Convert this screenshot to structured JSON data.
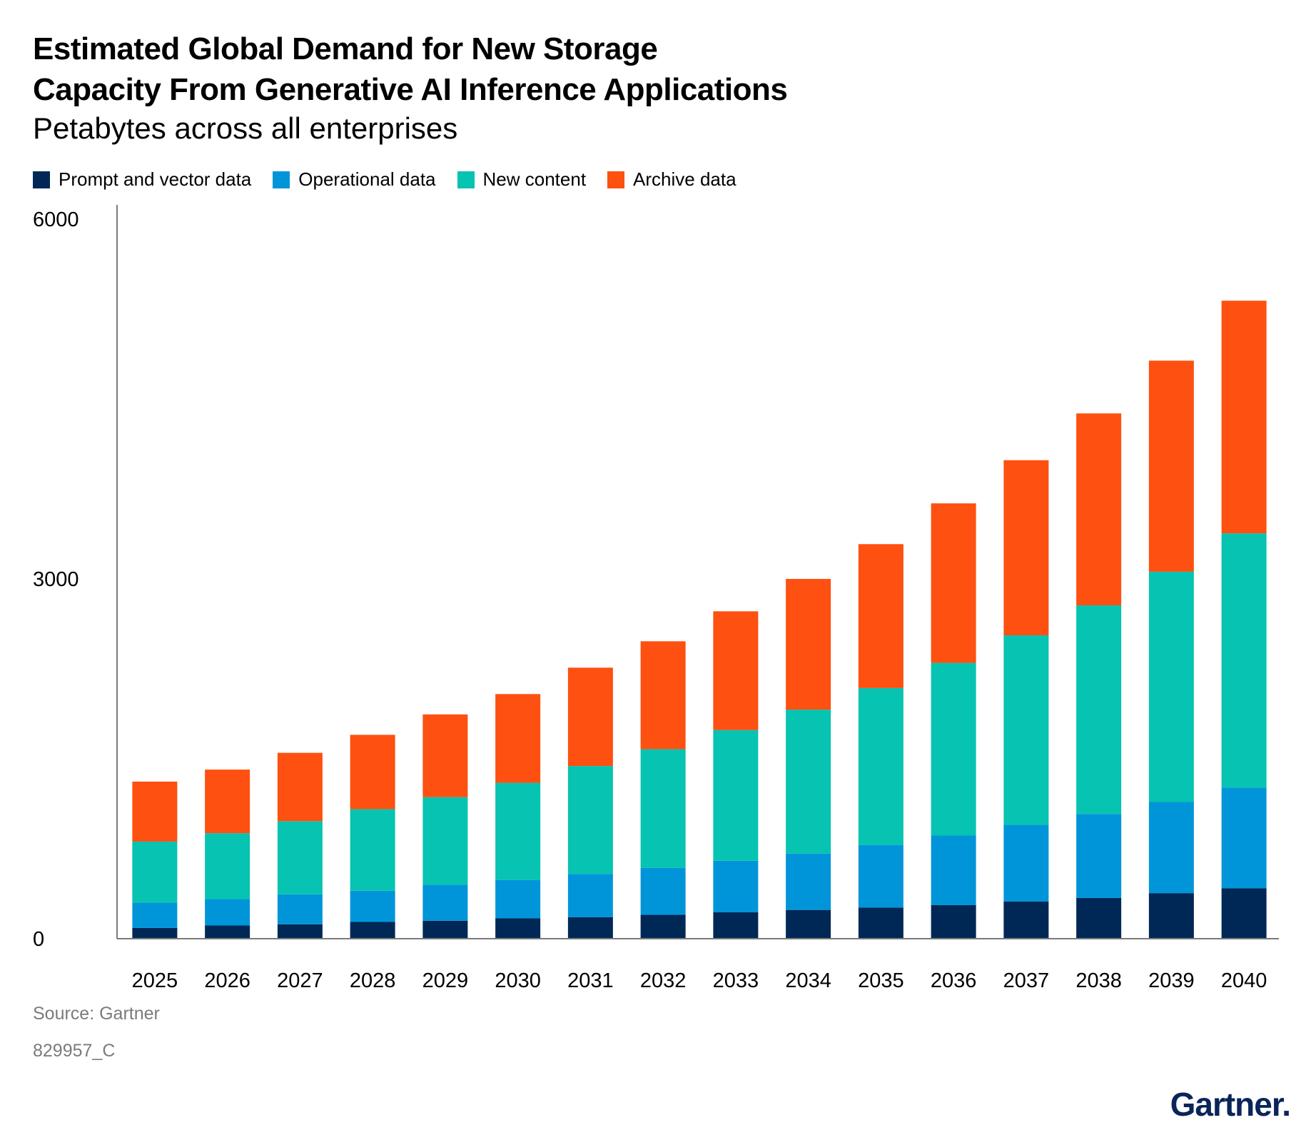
{
  "header": {
    "title_line1": "Estimated Global Demand for New Storage",
    "title_line2": "Capacity From Generative AI Inference Applications",
    "subtitle": "Petabytes across all enterprises"
  },
  "footer": {
    "source": "Source: Gartner",
    "id": "829957_C",
    "brand": "Gartner."
  },
  "colors": {
    "prompt": "#002856",
    "operational": "#0095d9",
    "new_content": "#07c3b1",
    "archive": "#fe5010",
    "axis": "#7a7a7a"
  },
  "chart_data": {
    "type": "bar",
    "stacked": true,
    "title": "Estimated Global Demand for New Storage Capacity From Generative AI Inference Applications",
    "subtitle": "Petabytes across all enterprises",
    "xlabel": "",
    "ylabel": "",
    "ylim": [
      0,
      6000
    ],
    "yticks": [
      "0",
      "3000",
      "6000"
    ],
    "legend_position": "top-left",
    "grid": false,
    "categories": [
      "2025",
      "2026",
      "2027",
      "2028",
      "2029",
      "2030",
      "2031",
      "2032",
      "2033",
      "2034",
      "2035",
      "2036",
      "2037",
      "2038",
      "2039",
      "2040"
    ],
    "series": [
      {
        "name": "Prompt and vector data",
        "color": "#002856",
        "values": [
          90,
          110,
          120,
          140,
          150,
          170,
          180,
          200,
          220,
          240,
          260,
          280,
          310,
          340,
          380,
          420
        ]
      },
      {
        "name": "Operational data",
        "color": "#0095d9",
        "values": [
          210,
          220,
          250,
          260,
          300,
          320,
          360,
          390,
          430,
          470,
          520,
          580,
          640,
          700,
          760,
          840
        ]
      },
      {
        "name": "New content",
        "color": "#07c3b1",
        "values": [
          510,
          550,
          610,
          680,
          730,
          810,
          900,
          990,
          1090,
          1200,
          1310,
          1440,
          1580,
          1740,
          1920,
          2120
        ]
      },
      {
        "name": "Archive data",
        "color": "#fe5010",
        "values": [
          500,
          530,
          570,
          620,
          690,
          740,
          820,
          900,
          990,
          1090,
          1200,
          1330,
          1460,
          1600,
          1760,
          1940
        ]
      }
    ]
  }
}
